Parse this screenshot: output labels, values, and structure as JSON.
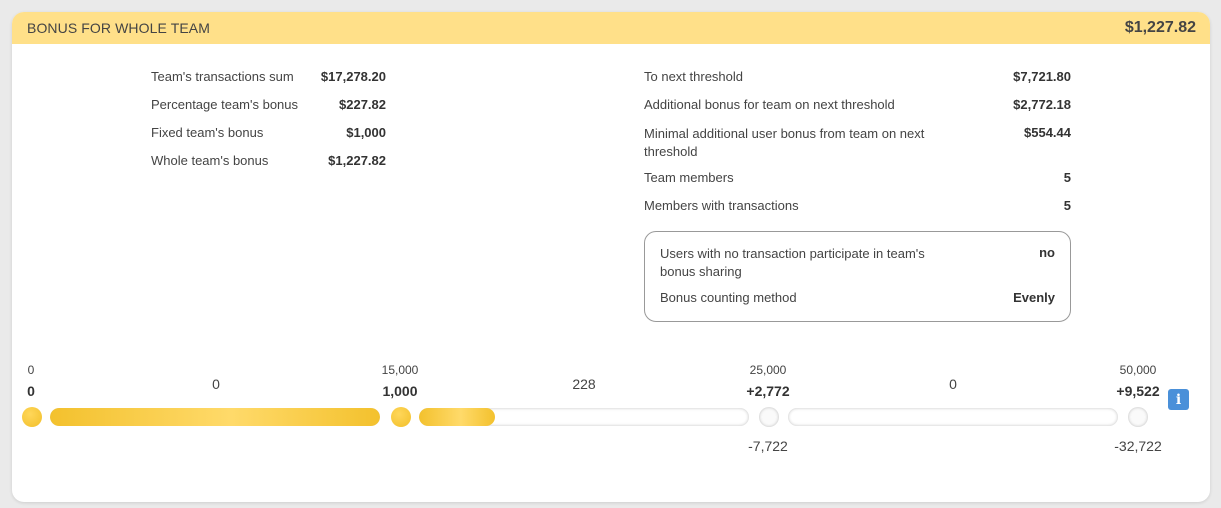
{
  "header": {
    "title": "BONUS FOR WHOLE TEAM",
    "total": "$1,227.82"
  },
  "left_stats": [
    {
      "label": "Team's transactions sum",
      "value": "$17,278.20"
    },
    {
      "label": "Percentage team's bonus",
      "value": "$227.82"
    },
    {
      "label": "Fixed team's bonus",
      "value": "$1,000"
    },
    {
      "label": "Whole team's bonus",
      "value": "$1,227.82"
    }
  ],
  "right_stats": [
    {
      "label": "To next threshold",
      "value": "$7,721.80"
    },
    {
      "label": "Additional bonus for team on next threshold",
      "value": "$2,772.18"
    },
    {
      "label": "Minimal additional user bonus from team on next threshold",
      "value": "$554.44"
    },
    {
      "label": "Team members",
      "value": "5"
    },
    {
      "label": "Members with transactions",
      "value": "5"
    }
  ],
  "settings": [
    {
      "label": "Users with no transaction participate in team's bonus sharing",
      "value": "no"
    },
    {
      "label": "Bonus counting method",
      "value": "Evenly"
    }
  ],
  "thresholds": [
    {
      "amount": "0",
      "bonus": "0",
      "reached": true
    },
    {
      "amount": "15,000",
      "bonus": "1,000",
      "reached": true
    },
    {
      "amount": "25,000",
      "bonus": "+2,772",
      "remaining": "-7,722",
      "reached": false
    },
    {
      "amount": "50,000",
      "bonus": "+9,522",
      "remaining": "-32,722",
      "reached": false
    }
  ],
  "segments": [
    {
      "value": "0",
      "progress": 1.0
    },
    {
      "value": "228",
      "progress": 0.23
    },
    {
      "value": "0",
      "progress": 0.0
    }
  ],
  "colors": {
    "header": "#ffe089",
    "accent": "#f3c12d",
    "info": "#4a90d9"
  },
  "info_icon": "info-icon"
}
